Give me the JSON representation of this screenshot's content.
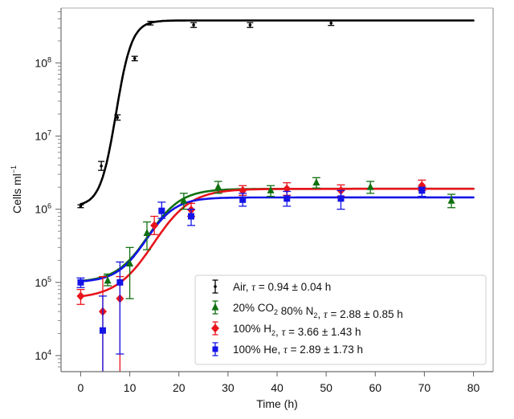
{
  "chart_data": {
    "type": "scatter",
    "title": "",
    "xlabel": "Time (h)",
    "ylabel": "Cells ml",
    "ylabel_sup": "−1",
    "xlim": [
      -4,
      84
    ],
    "ylim_log10": [
      3.78,
      8.75
    ],
    "yscale": "log",
    "x_ticks": [
      0,
      10,
      20,
      30,
      40,
      50,
      60,
      70,
      80
    ],
    "y_ticks": [
      {
        "exp": 4,
        "base": "10",
        "sup": "4"
      },
      {
        "exp": 5,
        "base": "10",
        "sup": "5"
      },
      {
        "exp": 6,
        "base": "10",
        "sup": "6"
      },
      {
        "exp": 7,
        "base": "10",
        "sup": "7"
      },
      {
        "exp": 8,
        "base": "10",
        "sup": "8"
      }
    ],
    "grid": false,
    "legend_position": "bottom-right",
    "series": [
      {
        "name": "Air",
        "legend": {
          "parts": [
            {
              "t": "Air, "
            },
            {
              "t": "τ",
              "italic": true
            },
            {
              "t": " = 0.94 ± 0.04 h"
            }
          ]
        },
        "color": "#000000",
        "marker": "dot",
        "points": [
          {
            "x": 0,
            "y": 1100000.0,
            "lo": 1050000.0,
            "hi": 1150000.0
          },
          {
            "x": 4.2,
            "y": 3900000.0,
            "lo": 3400000.0,
            "hi": 4500000.0
          },
          {
            "x": 7.5,
            "y": 18000000.0,
            "lo": 16500000.0,
            "hi": 19500000.0
          },
          {
            "x": 11,
            "y": 115000000.0,
            "lo": 107000000.0,
            "hi": 123000000.0
          },
          {
            "x": 14.2,
            "y": 350000000.0,
            "lo": 330000000.0,
            "hi": 370000000.0
          },
          {
            "x": 23,
            "y": 330000000.0,
            "lo": 305000000.0,
            "hi": 355000000.0
          },
          {
            "x": 34.5,
            "y": 330000000.0,
            "lo": 305000000.0,
            "hi": 355000000.0
          },
          {
            "x": 51,
            "y": 350000000.0,
            "lo": 325000000.0,
            "hi": 375000000.0
          }
        ],
        "fit": {
          "y0": 1100000.0,
          "ymax": 380000000.0,
          "t_mid": 7.2,
          "k": 0.62
        }
      },
      {
        "name": "20% CO2 80% N2",
        "legend": {
          "parts": [
            {
              "t": "20% CO"
            },
            {
              "t": "2",
              "sub": true
            },
            {
              "t": " 80% N"
            },
            {
              "t": "2",
              "sub": true
            },
            {
              "t": ", "
            },
            {
              "t": "τ",
              "italic": true
            },
            {
              "t": " = 2.88 ± 0.85 h"
            }
          ]
        },
        "color": "#107010",
        "marker": "triangle",
        "points": [
          {
            "x": 5.5,
            "y": 105000.0,
            "lo": 90000.0,
            "hi": 130000.0
          },
          {
            "x": 10,
            "y": 180000.0,
            "lo": 60000.0,
            "hi": 300000.0
          },
          {
            "x": 13.5,
            "y": 470000.0,
            "lo": 280000.0,
            "hi": 670000.0
          },
          {
            "x": 21,
            "y": 1300000.0,
            "lo": 1000000.0,
            "hi": 1650000.0
          },
          {
            "x": 28,
            "y": 2000000.0,
            "lo": 1650000.0,
            "hi": 2400000.0
          },
          {
            "x": 38.7,
            "y": 1800000.0,
            "lo": 1500000.0,
            "hi": 2100000.0
          },
          {
            "x": 48,
            "y": 2300000.0,
            "lo": 1950000.0,
            "hi": 2700000.0
          },
          {
            "x": 59,
            "y": 2000000.0,
            "lo": 1650000.0,
            "hi": 2400000.0
          },
          {
            "x": 75.5,
            "y": 1300000.0,
            "lo": 1050000.0,
            "hi": 1600000.0
          }
        ],
        "fit": {
          "y0": 100000.0,
          "ymax": 1900000.0,
          "t_mid": 13.8,
          "k": 0.3
        }
      },
      {
        "name": "100% H2",
        "legend": {
          "parts": [
            {
              "t": "100% H"
            },
            {
              "t": "2",
              "sub": true
            },
            {
              "t": ", "
            },
            {
              "t": "τ",
              "italic": true
            },
            {
              "t": " = 3.66 ± 1.43 h"
            }
          ]
        },
        "color": "#e8141c",
        "marker": "diamond",
        "points": [
          {
            "x": 0,
            "y": 65000.0,
            "lo": 50000.0,
            "hi": 80000.0
          },
          {
            "x": 4.5,
            "y": 40000.0,
            "lo": 1500.0,
            "hi": 120000.0
          },
          {
            "x": 8,
            "y": 60000.0,
            "lo": 1000.0,
            "hi": 120000.0
          },
          {
            "x": 15,
            "y": 600000.0,
            "lo": 450000.0,
            "hi": 800000.0
          },
          {
            "x": 22.5,
            "y": 980000.0,
            "lo": 800000.0,
            "hi": 1200000.0
          },
          {
            "x": 33,
            "y": 1800000.0,
            "lo": 1550000.0,
            "hi": 2100000.0
          },
          {
            "x": 42,
            "y": 1900000.0,
            "lo": 1550000.0,
            "hi": 2300000.0
          },
          {
            "x": 53,
            "y": 1800000.0,
            "lo": 1500000.0,
            "hi": 2150000.0
          },
          {
            "x": 69.5,
            "y": 2100000.0,
            "lo": 1800000.0,
            "hi": 2500000.0
          }
        ],
        "fit": {
          "y0": 60000.0,
          "ymax": 1900000.0,
          "t_mid": 14.8,
          "k": 0.26
        }
      },
      {
        "name": "100% He",
        "legend": {
          "parts": [
            {
              "t": "100% He, "
            },
            {
              "t": "τ",
              "italic": true
            },
            {
              "t": " = 2.89 ± 1.73 h"
            }
          ]
        },
        "color": "#1414e6",
        "marker": "square",
        "points": [
          {
            "x": 0,
            "y": 100000.0,
            "lo": 85000.0,
            "hi": 115000.0
          },
          {
            "x": 4.5,
            "y": 22000.0,
            "lo": 1500.0,
            "hi": 65000.0
          },
          {
            "x": 8,
            "y": 100000.0,
            "lo": 10500.0,
            "hi": 190000.0
          },
          {
            "x": 16.5,
            "y": 950000.0,
            "lo": 750000.0,
            "hi": 1250000.0
          },
          {
            "x": 22.5,
            "y": 800000.0,
            "lo": 600000.0,
            "hi": 1000000.0
          },
          {
            "x": 33,
            "y": 1350000.0,
            "lo": 1100000.0,
            "hi": 1650000.0
          },
          {
            "x": 42,
            "y": 1400000.0,
            "lo": 1100000.0,
            "hi": 1750000.0
          },
          {
            "x": 53,
            "y": 1400000.0,
            "lo": 1000000.0,
            "hi": 1800000.0
          },
          {
            "x": 69.5,
            "y": 1800000.0,
            "lo": 1500000.0,
            "hi": 2000000.0
          }
        ],
        "fit": {
          "y0": 100000.0,
          "ymax": 1450000.0,
          "t_mid": 13.3,
          "k": 0.33
        }
      }
    ]
  }
}
